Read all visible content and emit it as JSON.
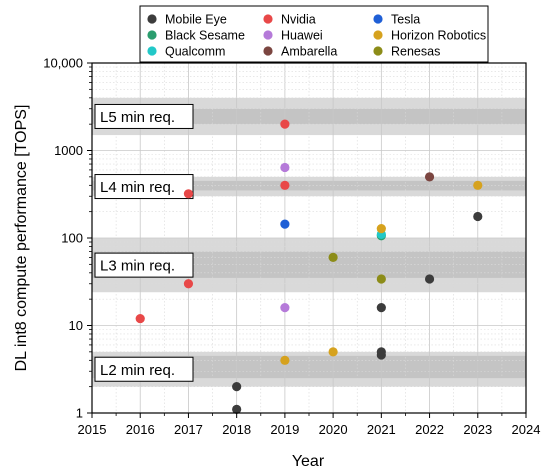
{
  "chart_data": {
    "type": "scatter",
    "xlabel": "Year",
    "ylabel": "DL int8 compute performance [TOPS]",
    "xlim": [
      2015,
      2024
    ],
    "ylim": [
      1,
      10000
    ],
    "y_scale": "log",
    "x_ticks": [
      "2015",
      "2016",
      "2017",
      "2018",
      "2019",
      "2020",
      "2021",
      "2022",
      "2023",
      "2024"
    ],
    "y_ticks": [
      {
        "value": 1,
        "label": "1"
      },
      {
        "value": 10,
        "label": "10"
      },
      {
        "value": 100,
        "label": "100"
      },
      {
        "value": 1000,
        "label": "1000"
      },
      {
        "value": 10000,
        "label": "10,000"
      }
    ],
    "grid": true,
    "legend_position": "top",
    "bands": [
      {
        "label": "L5 min req.",
        "outer": [
          1500,
          4000
        ],
        "inner": [
          2000,
          3000
        ]
      },
      {
        "label": "L4 min req.",
        "outer": [
          300,
          500
        ],
        "inner": [
          350,
          450
        ]
      },
      {
        "label": "L3 min req.",
        "outer": [
          24,
          100
        ],
        "inner": [
          35,
          70
        ]
      },
      {
        "label": "L2 min req.",
        "outer": [
          2,
          5
        ],
        "inner": [
          2.5,
          4.5
        ]
      }
    ],
    "series": [
      {
        "name": "Mobile Eye",
        "color": "#3c3c3c",
        "points": [
          [
            2018,
            2
          ],
          [
            2018,
            1.1
          ],
          [
            2021,
            16
          ],
          [
            2021,
            5
          ],
          [
            2021,
            4.6
          ],
          [
            2022,
            34
          ],
          [
            2023,
            176
          ]
        ]
      },
      {
        "name": "Black Sesame",
        "color": "#2a9d6e",
        "points": [
          [
            2021,
            106
          ]
        ]
      },
      {
        "name": "Qualcomm",
        "color": "#22c8c8",
        "points": [
          [
            2021,
            110
          ]
        ]
      },
      {
        "name": "Nvidia",
        "color": "#e84848",
        "points": [
          [
            2016,
            12
          ],
          [
            2017,
            30
          ],
          [
            2017,
            320
          ],
          [
            2019,
            400
          ],
          [
            2019,
            2000
          ]
        ]
      },
      {
        "name": "Huawei",
        "color": "#b57ad9",
        "points": [
          [
            2019,
            16
          ],
          [
            2019,
            640
          ]
        ]
      },
      {
        "name": "Ambarella",
        "color": "#7b4540",
        "points": [
          [
            2022,
            500
          ]
        ]
      },
      {
        "name": "Tesla",
        "color": "#1f5fd6",
        "points": [
          [
            2019,
            144
          ]
        ]
      },
      {
        "name": "Horizon Robotics",
        "color": "#d6a21e",
        "points": [
          [
            2019,
            4
          ],
          [
            2020,
            5
          ],
          [
            2021,
            128
          ],
          [
            2023,
            400
          ]
        ]
      },
      {
        "name": "Renesas",
        "color": "#8c8c18",
        "points": [
          [
            2020,
            60
          ],
          [
            2021,
            34
          ]
        ]
      }
    ]
  }
}
